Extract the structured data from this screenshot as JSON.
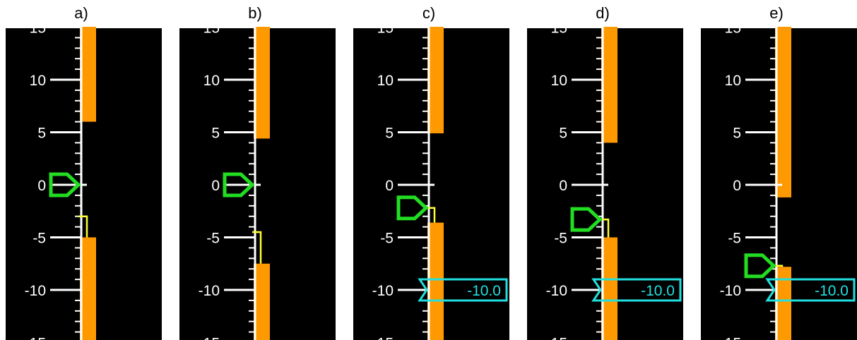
{
  "colors": {
    "background": "#000000",
    "scale": "#ffffff",
    "bar": "#ff9900",
    "pointer": "#22dd22",
    "trend": "#ffff33",
    "setpoint": "#22e0e0"
  },
  "scale": {
    "major_step": 5,
    "minor_step": 1,
    "visible_range": [
      -15,
      15
    ]
  },
  "panels": [
    {
      "label": "a)",
      "pointer_value": 0,
      "upper_bar_bottom": 6.0,
      "lower_bar_top": -5.0,
      "trend_from": -3.0,
      "trend_to": -5.0,
      "setpoint": null
    },
    {
      "label": "b)",
      "pointer_value": 0,
      "upper_bar_bottom": 4.4,
      "lower_bar_top": -7.5,
      "trend_from": -4.5,
      "trend_to": -7.5,
      "setpoint": null
    },
    {
      "label": "c)",
      "pointer_value": -2.2,
      "upper_bar_bottom": 4.9,
      "lower_bar_top": -3.6,
      "trend_from": -2.2,
      "trend_to": -3.6,
      "setpoint": {
        "value": -10.0,
        "label": "-10.0"
      }
    },
    {
      "label": "d)",
      "pointer_value": -3.3,
      "upper_bar_bottom": 4.0,
      "lower_bar_top": -5.0,
      "trend_from": -3.3,
      "trend_to": -5.0,
      "setpoint": {
        "value": -10.0,
        "label": "-10.0"
      }
    },
    {
      "label": "e)",
      "pointer_value": -7.7,
      "upper_bar_bottom": -1.2,
      "lower_bar_top": -7.8,
      "trend_from": -7.7,
      "trend_to": -7.8,
      "setpoint": {
        "value": -10.0,
        "label": "-10.0"
      }
    }
  ]
}
